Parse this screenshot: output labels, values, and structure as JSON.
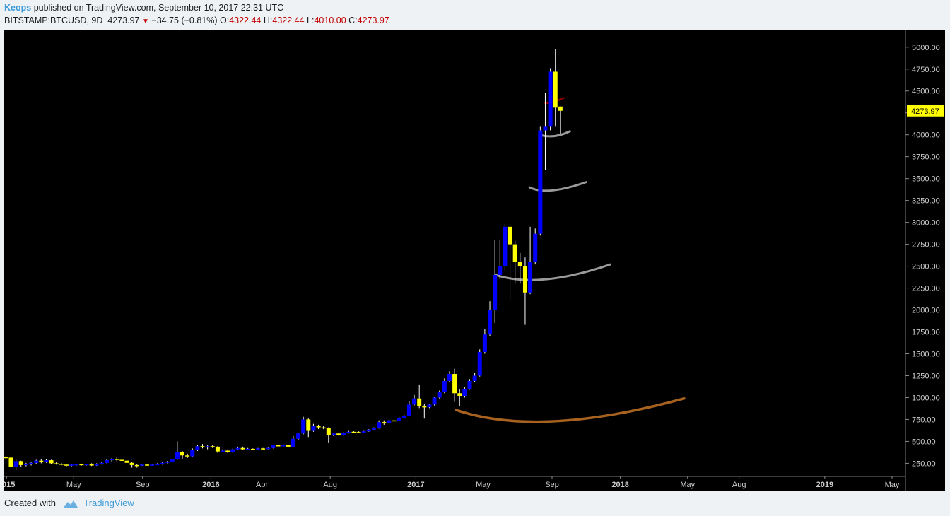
{
  "header": {
    "author": "Keops",
    "published_text": "published on TradingView.com, September 10, 2017 22:31 UTC"
  },
  "symbol_line": {
    "symbol": "BITSTAMP:BTCUSD, 9D",
    "last": "4273.97",
    "change": "−34.75 (−0.81%)",
    "o_label": "O:",
    "o": "4322.44",
    "h_label": "H:",
    "h": "4322.44",
    "l_label": "L:",
    "l": "4010.00",
    "c_label": "C:",
    "c": "4273.97",
    "down_color": "#c20000"
  },
  "footer": {
    "created_with": "Created with",
    "brand": "TradingView"
  },
  "chart_data": {
    "type": "candlestick",
    "background": "#000000",
    "up_color": "#0000ff",
    "down_color": "#ffff00",
    "ylim": [
      100,
      5200
    ],
    "xlim": [
      "2014-12-28",
      "2019-05-25"
    ],
    "yticks": [
      "250.00",
      "500.00",
      "750.00",
      "1000.00",
      "1250.00",
      "1500.00",
      "1750.00",
      "2000.00",
      "2250.00",
      "2500.00",
      "2750.00",
      "3000.00",
      "3250.00",
      "3500.00",
      "3750.00",
      "4000.00",
      "4250.00",
      "4500.00",
      "4750.00",
      "5000.00"
    ],
    "xticks": [
      {
        "label": "2015",
        "date": "2015-01-01",
        "bold": true
      },
      {
        "label": "May",
        "date": "2015-05-01",
        "bold": false
      },
      {
        "label": "Sep",
        "date": "2015-09-01",
        "bold": false
      },
      {
        "label": "2016",
        "date": "2016-01-01",
        "bold": true
      },
      {
        "label": "Apr",
        "date": "2016-04-01",
        "bold": false
      },
      {
        "label": "Aug",
        "date": "2016-08-01",
        "bold": false
      },
      {
        "label": "2017",
        "date": "2017-01-01",
        "bold": true
      },
      {
        "label": "May",
        "date": "2017-05-01",
        "bold": false
      },
      {
        "label": "Sep",
        "date": "2017-09-01",
        "bold": false
      },
      {
        "label": "2018",
        "date": "2018-01-01",
        "bold": true
      },
      {
        "label": "May",
        "date": "2018-05-01",
        "bold": false
      },
      {
        "label": "Aug",
        "date": "2018-08-01",
        "bold": false
      },
      {
        "label": "2019",
        "date": "2019-01-01",
        "bold": true
      },
      {
        "label": "May",
        "date": "2019-05-01",
        "bold": false
      }
    ],
    "last_price_label": "4273.97",
    "last_price_value": 4273.97,
    "last_price_color": "#ffff00",
    "candles": [
      {
        "d": "2014-12-31",
        "o": 320,
        "h": 335,
        "l": 290,
        "c": 315
      },
      {
        "d": "2015-01-09",
        "o": 315,
        "h": 320,
        "l": 180,
        "c": 210
      },
      {
        "d": "2015-01-18",
        "o": 210,
        "h": 300,
        "l": 170,
        "c": 275
      },
      {
        "d": "2015-01-27",
        "o": 275,
        "h": 280,
        "l": 210,
        "c": 230
      },
      {
        "d": "2015-02-05",
        "o": 230,
        "h": 255,
        "l": 215,
        "c": 240
      },
      {
        "d": "2015-02-14",
        "o": 240,
        "h": 270,
        "l": 225,
        "c": 255
      },
      {
        "d": "2015-02-23",
        "o": 255,
        "h": 290,
        "l": 240,
        "c": 280
      },
      {
        "d": "2015-03-04",
        "o": 280,
        "h": 300,
        "l": 250,
        "c": 265
      },
      {
        "d": "2015-03-13",
        "o": 265,
        "h": 295,
        "l": 255,
        "c": 285
      },
      {
        "d": "2015-03-22",
        "o": 285,
        "h": 290,
        "l": 240,
        "c": 250
      },
      {
        "d": "2015-03-31",
        "o": 250,
        "h": 265,
        "l": 235,
        "c": 245
      },
      {
        "d": "2015-04-09",
        "o": 245,
        "h": 255,
        "l": 225,
        "c": 235
      },
      {
        "d": "2015-04-18",
        "o": 235,
        "h": 245,
        "l": 215,
        "c": 225
      },
      {
        "d": "2015-04-27",
        "o": 225,
        "h": 245,
        "l": 215,
        "c": 235
      },
      {
        "d": "2015-05-06",
        "o": 235,
        "h": 245,
        "l": 225,
        "c": 240
      },
      {
        "d": "2015-05-15",
        "o": 240,
        "h": 245,
        "l": 225,
        "c": 232
      },
      {
        "d": "2015-05-24",
        "o": 232,
        "h": 245,
        "l": 225,
        "c": 240
      },
      {
        "d": "2015-06-02",
        "o": 240,
        "h": 250,
        "l": 220,
        "c": 225
      },
      {
        "d": "2015-06-11",
        "o": 225,
        "h": 250,
        "l": 220,
        "c": 245
      },
      {
        "d": "2015-06-20",
        "o": 245,
        "h": 265,
        "l": 235,
        "c": 255
      },
      {
        "d": "2015-06-29",
        "o": 255,
        "h": 295,
        "l": 250,
        "c": 285
      },
      {
        "d": "2015-07-08",
        "o": 285,
        "h": 310,
        "l": 270,
        "c": 300
      },
      {
        "d": "2015-07-17",
        "o": 300,
        "h": 320,
        "l": 275,
        "c": 290
      },
      {
        "d": "2015-07-26",
        "o": 290,
        "h": 300,
        "l": 270,
        "c": 280
      },
      {
        "d": "2015-08-04",
        "o": 280,
        "h": 290,
        "l": 250,
        "c": 255
      },
      {
        "d": "2015-08-13",
        "o": 255,
        "h": 265,
        "l": 200,
        "c": 230
      },
      {
        "d": "2015-08-22",
        "o": 230,
        "h": 245,
        "l": 200,
        "c": 228
      },
      {
        "d": "2015-08-31",
        "o": 228,
        "h": 245,
        "l": 220,
        "c": 235
      },
      {
        "d": "2015-09-09",
        "o": 235,
        "h": 245,
        "l": 225,
        "c": 232
      },
      {
        "d": "2015-09-18",
        "o": 232,
        "h": 245,
        "l": 225,
        "c": 235
      },
      {
        "d": "2015-09-27",
        "o": 235,
        "h": 250,
        "l": 230,
        "c": 240
      },
      {
        "d": "2015-10-06",
        "o": 240,
        "h": 260,
        "l": 235,
        "c": 255
      },
      {
        "d": "2015-10-15",
        "o": 255,
        "h": 275,
        "l": 250,
        "c": 270
      },
      {
        "d": "2015-10-24",
        "o": 270,
        "h": 300,
        "l": 265,
        "c": 295
      },
      {
        "d": "2015-11-02",
        "o": 295,
        "h": 500,
        "l": 290,
        "c": 380
      },
      {
        "d": "2015-11-11",
        "o": 380,
        "h": 390,
        "l": 300,
        "c": 340
      },
      {
        "d": "2015-11-20",
        "o": 340,
        "h": 360,
        "l": 310,
        "c": 330
      },
      {
        "d": "2015-11-29",
        "o": 330,
        "h": 420,
        "l": 325,
        "c": 400
      },
      {
        "d": "2015-12-08",
        "o": 400,
        "h": 460,
        "l": 390,
        "c": 445
      },
      {
        "d": "2015-12-17",
        "o": 445,
        "h": 470,
        "l": 420,
        "c": 440
      },
      {
        "d": "2015-12-26",
        "o": 440,
        "h": 460,
        "l": 410,
        "c": 445
      },
      {
        "d": "2016-01-04",
        "o": 445,
        "h": 455,
        "l": 425,
        "c": 440
      },
      {
        "d": "2016-01-13",
        "o": 440,
        "h": 445,
        "l": 370,
        "c": 385
      },
      {
        "d": "2016-01-22",
        "o": 385,
        "h": 410,
        "l": 375,
        "c": 395
      },
      {
        "d": "2016-01-31",
        "o": 395,
        "h": 410,
        "l": 365,
        "c": 375
      },
      {
        "d": "2016-02-09",
        "o": 375,
        "h": 420,
        "l": 370,
        "c": 410
      },
      {
        "d": "2016-02-18",
        "o": 410,
        "h": 440,
        "l": 400,
        "c": 425
      },
      {
        "d": "2016-02-27",
        "o": 425,
        "h": 440,
        "l": 405,
        "c": 410
      },
      {
        "d": "2016-03-07",
        "o": 410,
        "h": 425,
        "l": 400,
        "c": 415
      },
      {
        "d": "2016-03-16",
        "o": 415,
        "h": 420,
        "l": 405,
        "c": 412
      },
      {
        "d": "2016-03-25",
        "o": 412,
        "h": 425,
        "l": 405,
        "c": 420
      },
      {
        "d": "2016-04-03",
        "o": 420,
        "h": 425,
        "l": 410,
        "c": 416
      },
      {
        "d": "2016-04-12",
        "o": 416,
        "h": 430,
        "l": 410,
        "c": 425
      },
      {
        "d": "2016-04-21",
        "o": 425,
        "h": 460,
        "l": 420,
        "c": 455
      },
      {
        "d": "2016-04-30",
        "o": 455,
        "h": 465,
        "l": 440,
        "c": 450
      },
      {
        "d": "2016-05-09",
        "o": 450,
        "h": 470,
        "l": 440,
        "c": 455
      },
      {
        "d": "2016-05-18",
        "o": 455,
        "h": 460,
        "l": 430,
        "c": 440
      },
      {
        "d": "2016-05-27",
        "o": 440,
        "h": 560,
        "l": 435,
        "c": 530
      },
      {
        "d": "2016-06-05",
        "o": 530,
        "h": 600,
        "l": 520,
        "c": 590
      },
      {
        "d": "2016-06-14",
        "o": 590,
        "h": 780,
        "l": 580,
        "c": 750
      },
      {
        "d": "2016-06-23",
        "o": 750,
        "h": 770,
        "l": 550,
        "c": 620
      },
      {
        "d": "2016-07-02",
        "o": 620,
        "h": 700,
        "l": 610,
        "c": 680
      },
      {
        "d": "2016-07-11",
        "o": 680,
        "h": 690,
        "l": 640,
        "c": 660
      },
      {
        "d": "2016-07-20",
        "o": 660,
        "h": 680,
        "l": 640,
        "c": 655
      },
      {
        "d": "2016-07-29",
        "o": 655,
        "h": 660,
        "l": 480,
        "c": 575
      },
      {
        "d": "2016-08-07",
        "o": 575,
        "h": 600,
        "l": 560,
        "c": 590
      },
      {
        "d": "2016-08-16",
        "o": 590,
        "h": 600,
        "l": 565,
        "c": 575
      },
      {
        "d": "2016-08-25",
        "o": 575,
        "h": 605,
        "l": 565,
        "c": 595
      },
      {
        "d": "2016-09-03",
        "o": 595,
        "h": 620,
        "l": 590,
        "c": 610
      },
      {
        "d": "2016-09-12",
        "o": 610,
        "h": 615,
        "l": 600,
        "c": 607
      },
      {
        "d": "2016-09-21",
        "o": 607,
        "h": 615,
        "l": 595,
        "c": 600
      },
      {
        "d": "2016-09-30",
        "o": 600,
        "h": 620,
        "l": 595,
        "c": 615
      },
      {
        "d": "2016-10-09",
        "o": 615,
        "h": 640,
        "l": 610,
        "c": 635
      },
      {
        "d": "2016-10-18",
        "o": 635,
        "h": 660,
        "l": 630,
        "c": 650
      },
      {
        "d": "2016-10-27",
        "o": 650,
        "h": 740,
        "l": 645,
        "c": 720
      },
      {
        "d": "2016-11-05",
        "o": 720,
        "h": 740,
        "l": 690,
        "c": 705
      },
      {
        "d": "2016-11-14",
        "o": 705,
        "h": 750,
        "l": 700,
        "c": 740
      },
      {
        "d": "2016-11-23",
        "o": 740,
        "h": 755,
        "l": 725,
        "c": 735
      },
      {
        "d": "2016-12-02",
        "o": 735,
        "h": 780,
        "l": 730,
        "c": 770
      },
      {
        "d": "2016-12-11",
        "o": 770,
        "h": 800,
        "l": 760,
        "c": 790
      },
      {
        "d": "2016-12-20",
        "o": 790,
        "h": 960,
        "l": 785,
        "c": 920
      },
      {
        "d": "2016-12-29",
        "o": 920,
        "h": 1030,
        "l": 910,
        "c": 990
      },
      {
        "d": "2017-01-07",
        "o": 990,
        "h": 1150,
        "l": 880,
        "c": 900
      },
      {
        "d": "2017-01-16",
        "o": 900,
        "h": 930,
        "l": 760,
        "c": 890
      },
      {
        "d": "2017-01-25",
        "o": 890,
        "h": 930,
        "l": 880,
        "c": 920
      },
      {
        "d": "2017-02-03",
        "o": 920,
        "h": 1010,
        "l": 910,
        "c": 1000
      },
      {
        "d": "2017-02-12",
        "o": 1000,
        "h": 1080,
        "l": 990,
        "c": 1060
      },
      {
        "d": "2017-02-21",
        "o": 1060,
        "h": 1220,
        "l": 1050,
        "c": 1190
      },
      {
        "d": "2017-03-02",
        "o": 1190,
        "h": 1300,
        "l": 1180,
        "c": 1270
      },
      {
        "d": "2017-03-11",
        "o": 1270,
        "h": 1330,
        "l": 950,
        "c": 1050
      },
      {
        "d": "2017-03-20",
        "o": 1050,
        "h": 1100,
        "l": 900,
        "c": 1020
      },
      {
        "d": "2017-03-29",
        "o": 1020,
        "h": 1120,
        "l": 1000,
        "c": 1100
      },
      {
        "d": "2017-04-07",
        "o": 1100,
        "h": 1210,
        "l": 1090,
        "c": 1190
      },
      {
        "d": "2017-04-16",
        "o": 1190,
        "h": 1280,
        "l": 1180,
        "c": 1250
      },
      {
        "d": "2017-04-25",
        "o": 1250,
        "h": 1550,
        "l": 1240,
        "c": 1520
      },
      {
        "d": "2017-05-04",
        "o": 1520,
        "h": 1780,
        "l": 1500,
        "c": 1720
      },
      {
        "d": "2017-05-13",
        "o": 1720,
        "h": 2100,
        "l": 1700,
        "c": 2000
      },
      {
        "d": "2017-05-22",
        "o": 2000,
        "h": 2800,
        "l": 1850,
        "c": 2400
      },
      {
        "d": "2017-05-31",
        "o": 2400,
        "h": 2800,
        "l": 2350,
        "c": 2500
      },
      {
        "d": "2017-06-09",
        "o": 2500,
        "h": 2980,
        "l": 2450,
        "c": 2950
      },
      {
        "d": "2017-06-18",
        "o": 2950,
        "h": 2980,
        "l": 2120,
        "c": 2750
      },
      {
        "d": "2017-06-27",
        "o": 2750,
        "h": 2790,
        "l": 2300,
        "c": 2550
      },
      {
        "d": "2017-07-06",
        "o": 2550,
        "h": 2650,
        "l": 2300,
        "c": 2500
      },
      {
        "d": "2017-07-15",
        "o": 2500,
        "h": 2600,
        "l": 1830,
        "c": 2200
      },
      {
        "d": "2017-07-24",
        "o": 2200,
        "h": 2950,
        "l": 2180,
        "c": 2550
      },
      {
        "d": "2017-08-02",
        "o": 2550,
        "h": 2930,
        "l": 2520,
        "c": 2870
      },
      {
        "d": "2017-08-11",
        "o": 2870,
        "h": 4100,
        "l": 2850,
        "c": 4050
      },
      {
        "d": "2017-08-20",
        "o": 4050,
        "h": 4480,
        "l": 3600,
        "c": 4100
      },
      {
        "d": "2017-08-29",
        "o": 4100,
        "h": 4760,
        "l": 4050,
        "c": 4720
      },
      {
        "d": "2017-09-07",
        "o": 4720,
        "h": 4980,
        "l": 4100,
        "c": 4310
      },
      {
        "d": "2017-09-16",
        "o": 4322.44,
        "h": 4322.44,
        "l": 4010,
        "c": 4273.97
      }
    ],
    "arcs": [
      {
        "color": "#8b0000",
        "width": 2.5,
        "points": [
          [
            "2017-08-20",
            4360
          ],
          [
            "2017-09-05",
            4380
          ],
          [
            "2017-09-22",
            4420
          ]
        ]
      },
      {
        "color": "#9a9a9a",
        "width": 3,
        "points": [
          [
            "2017-08-10",
            4000
          ],
          [
            "2017-09-05",
            3985
          ],
          [
            "2017-10-03",
            4040
          ]
        ]
      },
      {
        "color": "#9a9a9a",
        "width": 3,
        "points": [
          [
            "2017-07-23",
            3400
          ],
          [
            "2017-09-01",
            3365
          ],
          [
            "2017-11-01",
            3460
          ]
        ]
      },
      {
        "color": "#9a9a9a",
        "width": 3,
        "points": [
          [
            "2017-05-23",
            2400
          ],
          [
            "2017-08-21",
            2350
          ],
          [
            "2017-12-14",
            2520
          ]
        ]
      },
      {
        "color": "#a86220",
        "width": 3.5,
        "points": [
          [
            "2017-03-13",
            860
          ],
          [
            "2017-09-05",
            730
          ],
          [
            "2018-04-25",
            990
          ]
        ]
      }
    ]
  }
}
